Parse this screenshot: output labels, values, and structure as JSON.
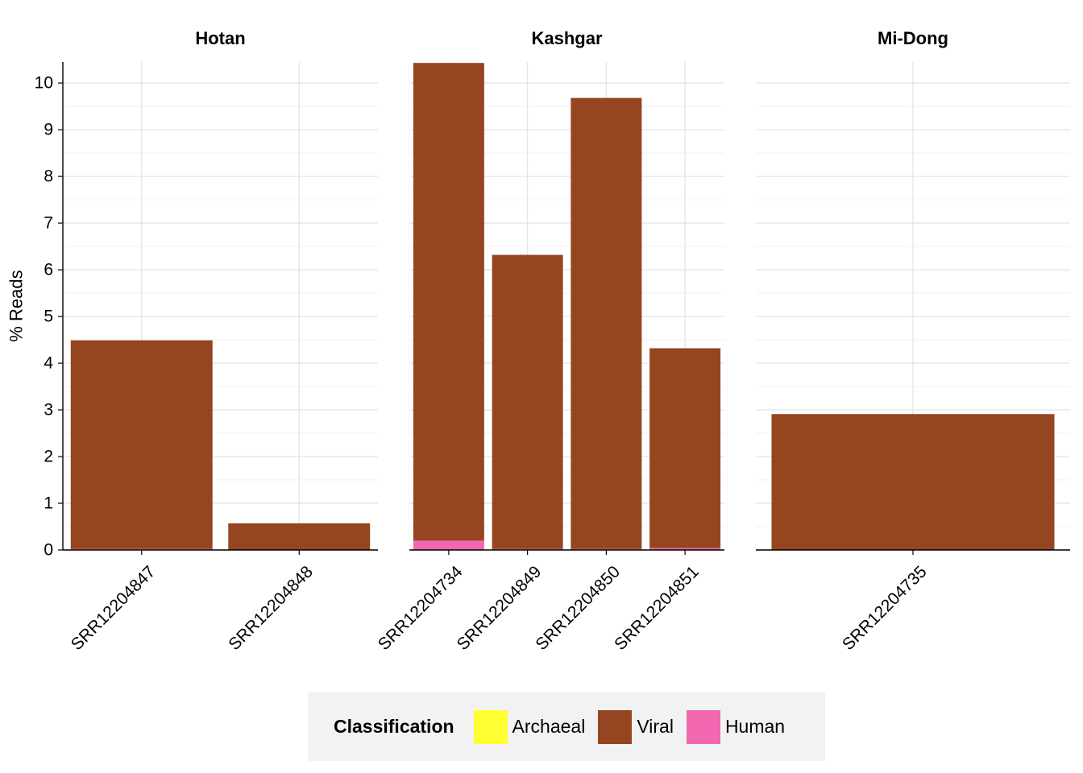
{
  "chart_data": {
    "type": "bar",
    "stacked": true,
    "ylabel": "% Reads",
    "xlabel": "",
    "ylim": [
      0,
      10.45
    ],
    "yticks": [
      0,
      1,
      2,
      3,
      4,
      5,
      6,
      7,
      8,
      9,
      10
    ],
    "grid": true,
    "legend_position": "bottom",
    "legend": {
      "title": "Classification",
      "entries": [
        {
          "name": "Archaeal",
          "color": "#FFFF33"
        },
        {
          "name": "Viral",
          "color": "#964521"
        },
        {
          "name": "Human",
          "color": "#F167B0"
        }
      ]
    },
    "facets": [
      {
        "title": "Hotan",
        "samples": [
          {
            "label": "SRR12204847",
            "Archaeal": 0,
            "Viral": 4.47,
            "Human": 0.02
          },
          {
            "label": "SRR12204848",
            "Archaeal": 0,
            "Viral": 0.57,
            "Human": 0
          }
        ]
      },
      {
        "title": "Kashgar",
        "samples": [
          {
            "label": "SRR12204734",
            "Archaeal": 0,
            "Viral": 10.23,
            "Human": 0.2
          },
          {
            "label": "SRR12204849",
            "Archaeal": 0,
            "Viral": 6.3,
            "Human": 0.02
          },
          {
            "label": "SRR12204850",
            "Archaeal": 0,
            "Viral": 9.66,
            "Human": 0.02
          },
          {
            "label": "SRR12204851",
            "Archaeal": 0,
            "Viral": 4.28,
            "Human": 0.04
          }
        ]
      },
      {
        "title": "Mi-Dong",
        "samples": [
          {
            "label": "SRR12204735",
            "Archaeal": 0,
            "Viral": 2.91,
            "Human": 0
          }
        ]
      }
    ]
  }
}
